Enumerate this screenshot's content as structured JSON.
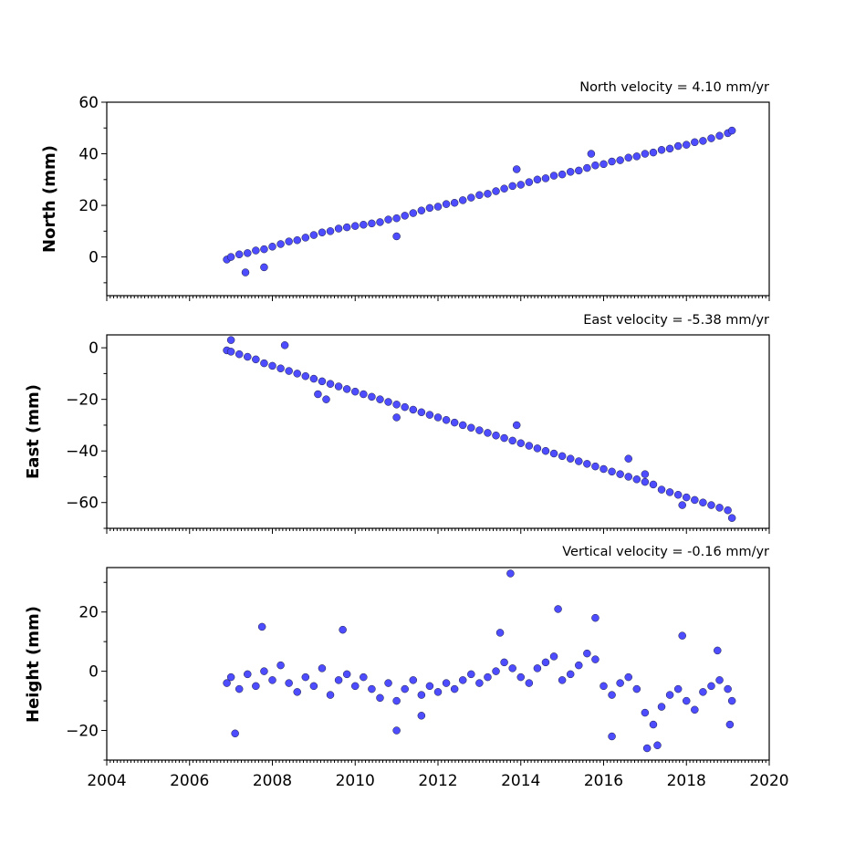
{
  "chart_data": [
    {
      "type": "scatter",
      "title": "North velocity = 4.10 mm/yr",
      "ylabel": "North (mm)",
      "xlim": [
        2004,
        2020
      ],
      "ylim": [
        -15,
        60
      ],
      "yticks": [
        0,
        20,
        40,
        60
      ],
      "color": "#4d4dff",
      "series": [
        {
          "x": [
            2006.9,
            2007.0,
            2007.2,
            2007.4,
            2007.6,
            2007.8,
            2008.0,
            2008.2,
            2008.4,
            2008.6,
            2008.8,
            2009.0,
            2009.2,
            2009.4,
            2009.6,
            2009.8,
            2010.0,
            2010.2,
            2010.4,
            2010.6,
            2010.8,
            2011.0,
            2011.2,
            2011.4,
            2011.6,
            2011.8,
            2012.0,
            2012.2,
            2012.4,
            2012.6,
            2012.8,
            2013.0,
            2013.2,
            2013.4,
            2013.6,
            2013.8,
            2014.0,
            2014.2,
            2014.4,
            2014.6,
            2014.8,
            2015.0,
            2015.2,
            2015.4,
            2015.6,
            2015.8,
            2016.0,
            2016.2,
            2016.4,
            2016.6,
            2016.8,
            2017.0,
            2017.2,
            2017.4,
            2017.6,
            2017.8,
            2018.0,
            2018.2,
            2018.4,
            2018.6,
            2018.8,
            2019.0,
            2019.1,
            2007.35,
            2007.8,
            2011.0,
            2013.9,
            2015.7
          ],
          "y": [
            -1,
            0,
            1,
            1.5,
            2.5,
            3,
            4,
            5,
            6,
            6.5,
            7.5,
            8.5,
            9.5,
            10,
            11,
            11.5,
            12,
            12.5,
            13,
            13.5,
            14.5,
            15,
            16,
            17,
            18,
            19,
            19.5,
            20.5,
            21,
            22,
            23,
            24,
            24.5,
            25.5,
            26.5,
            27.5,
            28,
            29,
            30,
            30.5,
            31.5,
            32,
            33,
            33.5,
            34.5,
            35.5,
            36,
            37,
            37.5,
            38.5,
            39,
            40,
            40.5,
            41.5,
            42,
            43,
            43.5,
            44.5,
            45,
            46,
            47,
            48,
            49,
            -6,
            -4,
            8,
            34,
            40
          ]
        }
      ]
    },
    {
      "type": "scatter",
      "title": "East velocity = -5.38 mm/yr",
      "ylabel": "East (mm)",
      "xlim": [
        2004,
        2020
      ],
      "ylim": [
        -70,
        5
      ],
      "yticks": [
        -60,
        -40,
        -20,
        0
      ],
      "color": "#4d4dff",
      "series": [
        {
          "x": [
            2006.9,
            2007.0,
            2007.2,
            2007.4,
            2007.6,
            2007.8,
            2008.0,
            2008.2,
            2008.4,
            2008.6,
            2008.8,
            2009.0,
            2009.2,
            2009.4,
            2009.6,
            2009.8,
            2010.0,
            2010.2,
            2010.4,
            2010.6,
            2010.8,
            2011.0,
            2011.2,
            2011.4,
            2011.6,
            2011.8,
            2012.0,
            2012.2,
            2012.4,
            2012.6,
            2012.8,
            2013.0,
            2013.2,
            2013.4,
            2013.6,
            2013.8,
            2014.0,
            2014.2,
            2014.4,
            2014.6,
            2014.8,
            2015.0,
            2015.2,
            2015.4,
            2015.6,
            2015.8,
            2016.0,
            2016.2,
            2016.4,
            2016.6,
            2016.8,
            2017.0,
            2017.2,
            2017.4,
            2017.6,
            2017.8,
            2018.0,
            2018.2,
            2018.4,
            2018.6,
            2018.8,
            2019.0,
            2019.1,
            2007.0,
            2008.3,
            2009.1,
            2009.3,
            2011.0,
            2013.9,
            2016.6,
            2017.0,
            2017.9
          ],
          "y": [
            -1,
            -1.5,
            -2.5,
            -3.5,
            -4.5,
            -6,
            -7,
            -8,
            -9,
            -10,
            -11,
            -12,
            -13,
            -14,
            -15,
            -16,
            -17,
            -18,
            -19,
            -20,
            -21,
            -22,
            -23,
            -24,
            -25,
            -26,
            -27,
            -28,
            -29,
            -30,
            -31,
            -32,
            -33,
            -34,
            -35,
            -36,
            -37,
            -38,
            -39,
            -40,
            -41,
            -42,
            -43,
            -44,
            -45,
            -46,
            -47,
            -48,
            -49,
            -50,
            -51,
            -52,
            -53,
            -55,
            -56,
            -57,
            -58,
            -59,
            -60,
            -61,
            -62,
            -63,
            -66,
            3,
            1,
            -18,
            -20,
            -27,
            -30,
            -43,
            -49,
            -61
          ]
        }
      ]
    },
    {
      "type": "scatter",
      "title": "Vertical velocity = -0.16 mm/yr",
      "ylabel": "Height (mm)",
      "xlim": [
        2004,
        2020
      ],
      "ylim": [
        -30,
        35
      ],
      "yticks": [
        -20,
        0,
        20
      ],
      "color": "#4d4dff",
      "series": [
        {
          "x": [
            2006.9,
            2007.0,
            2007.2,
            2007.4,
            2007.6,
            2007.8,
            2008.0,
            2008.2,
            2008.4,
            2008.6,
            2008.8,
            2009.0,
            2009.2,
            2009.4,
            2009.6,
            2009.8,
            2010.0,
            2010.2,
            2010.4,
            2010.6,
            2010.8,
            2011.0,
            2011.2,
            2011.4,
            2011.6,
            2011.8,
            2012.0,
            2012.2,
            2012.4,
            2012.6,
            2012.8,
            2013.0,
            2013.2,
            2013.4,
            2013.6,
            2013.8,
            2014.0,
            2014.2,
            2014.4,
            2014.6,
            2014.8,
            2015.0,
            2015.2,
            2015.4,
            2015.6,
            2015.8,
            2016.0,
            2016.2,
            2016.4,
            2016.6,
            2016.8,
            2017.0,
            2017.2,
            2017.4,
            2017.6,
            2017.8,
            2018.0,
            2018.2,
            2018.4,
            2018.6,
            2018.8,
            2019.0,
            2019.1,
            2013.75,
            2014.9,
            2015.8,
            2017.05,
            2017.3,
            2007.1,
            2007.75,
            2011.0,
            2011.6,
            2016.2,
            2017.9,
            2018.75,
            2019.05,
            2009.7,
            2013.5
          ],
          "y": [
            -4,
            -2,
            -6,
            -1,
            -5,
            0,
            -3,
            2,
            -4,
            -7,
            -2,
            -5,
            1,
            -8,
            -3,
            -1,
            -5,
            -2,
            -6,
            -9,
            -4,
            -10,
            -6,
            -3,
            -8,
            -5,
            -7,
            -4,
            -6,
            -3,
            -1,
            -4,
            -2,
            0,
            3,
            1,
            -2,
            -4,
            1,
            3,
            5,
            -3,
            -1,
            2,
            6,
            4,
            -5,
            -8,
            -4,
            -2,
            -6,
            -14,
            -18,
            -12,
            -8,
            -6,
            -10,
            -13,
            -7,
            -5,
            -3,
            -6,
            -10,
            33,
            21,
            18,
            -26,
            -25,
            -21,
            15,
            -20,
            -15,
            -22,
            12,
            7,
            -18,
            14,
            13
          ]
        }
      ]
    }
  ]
}
